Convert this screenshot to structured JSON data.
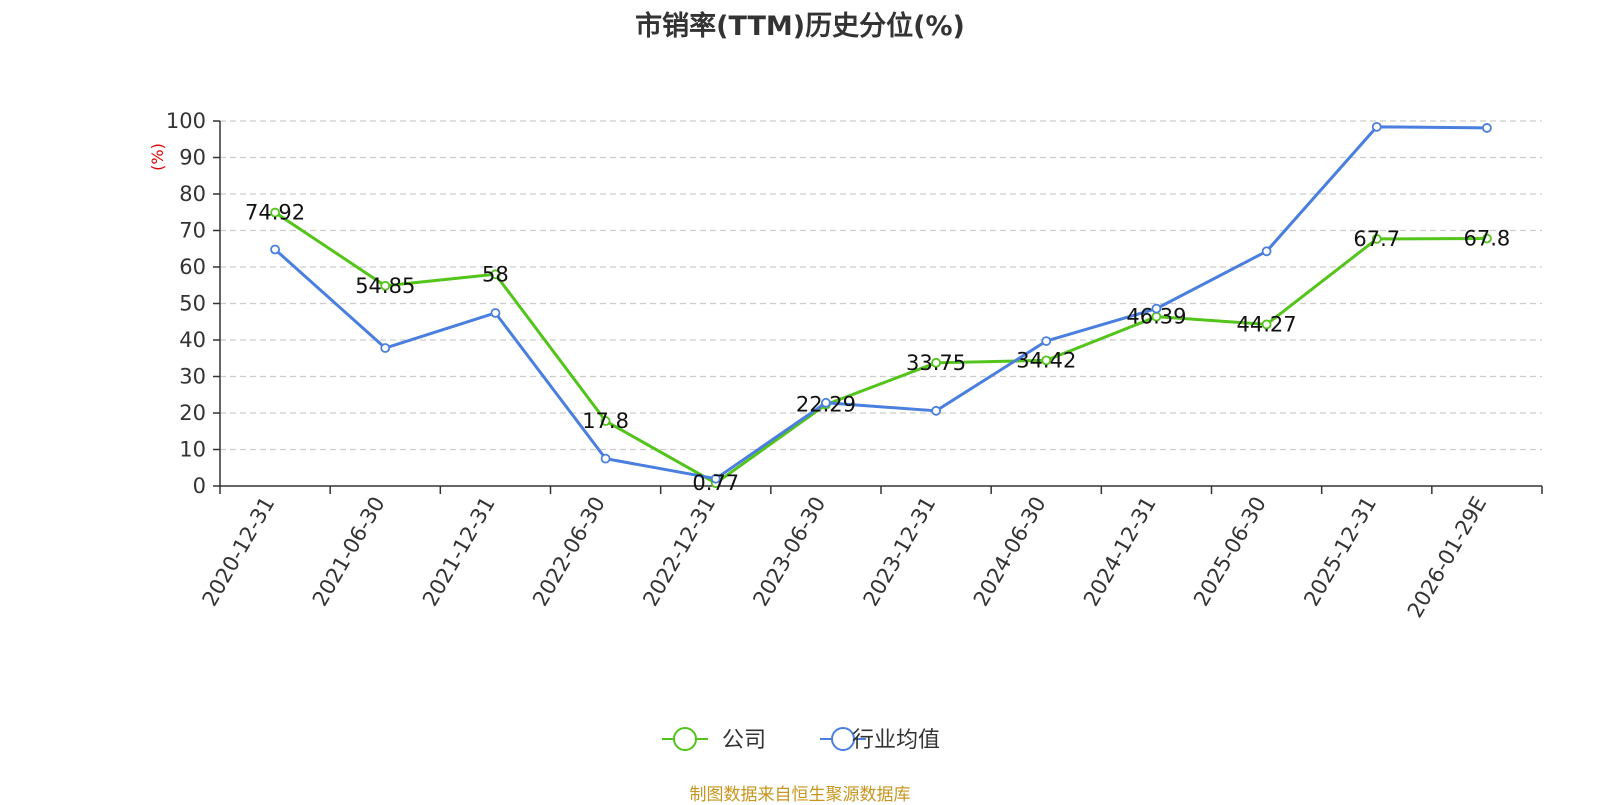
{
  "title": "市销率(TTM)历史分位(%)",
  "source_note": "制图数据来自恒生聚源数据库",
  "chart_data": {
    "type": "line",
    "title": "市销率(TTM)历史分位(%)",
    "ylabel": "(%)",
    "ylim": [
      0,
      100
    ],
    "yticks": [
      0,
      10,
      20,
      30,
      40,
      50,
      60,
      70,
      80,
      90,
      100
    ],
    "grid": true,
    "legend_position": "bottom",
    "categories": [
      "2020-12-31",
      "2021-06-30",
      "2021-12-31",
      "2022-06-30",
      "2022-12-31",
      "2023-06-30",
      "2023-12-31",
      "2024-06-30",
      "2024-12-31",
      "2025-06-30",
      "2025-12-31",
      "2026-01-29E"
    ],
    "series": [
      {
        "name": "公司",
        "color": "#52c41a",
        "values": [
          74.92,
          54.85,
          58,
          17.8,
          0.77,
          22.29,
          33.75,
          34.42,
          46.39,
          44.27,
          67.7,
          67.8
        ],
        "labels": [
          "74.92",
          "54.85",
          "58",
          "17.8",
          "0.77",
          "22.29",
          "33.75",
          "34.42",
          "46.39",
          "44.27",
          "67.7",
          "67.8"
        ]
      },
      {
        "name": "行业均值",
        "color": "#4a7fe0",
        "values": [
          64.8,
          37.8,
          47.4,
          7.5,
          2.0,
          22.8,
          20.6,
          39.7,
          48.6,
          64.3,
          98.4,
          98.1
        ]
      }
    ]
  }
}
